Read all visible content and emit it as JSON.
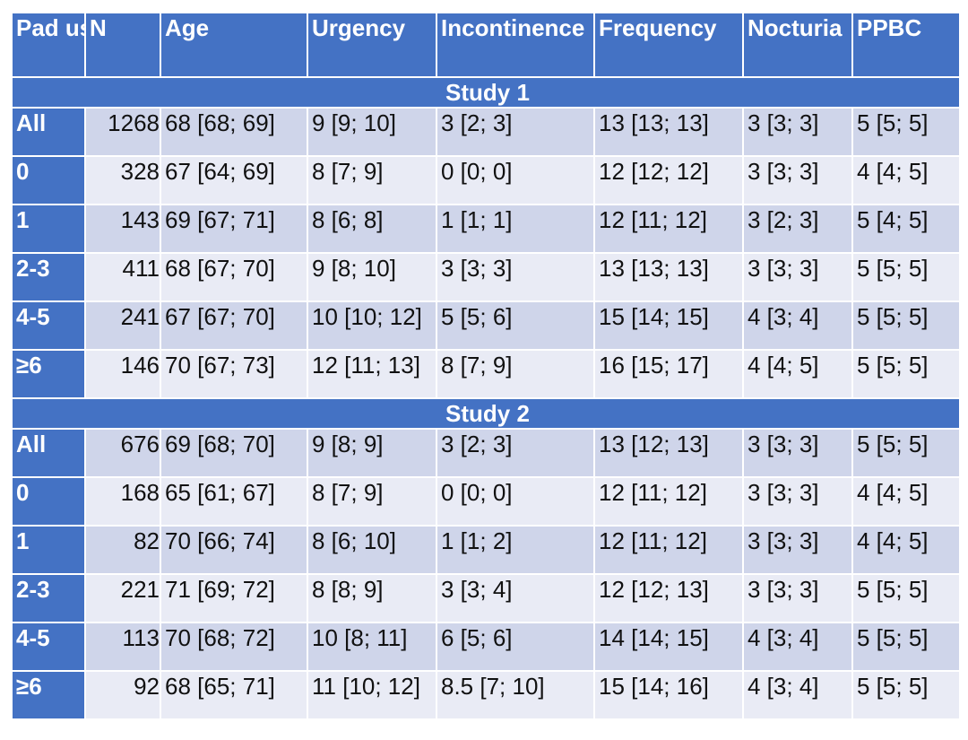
{
  "columns": [
    "Pad use",
    "N",
    "Age",
    "Urgency",
    "Incontinence",
    "Frequency",
    "Nocturia",
    "PPBC"
  ],
  "sections": [
    {
      "title": "Study 1",
      "rows": [
        [
          "All",
          "1268",
          "68 [68; 69]",
          "9 [9; 10]",
          "3 [2; 3]",
          "13 [13; 13]",
          "3 [3; 3]",
          "5 [5; 5]"
        ],
        [
          "0",
          "328",
          "67 [64; 69]",
          "8 [7; 9]",
          "0 [0; 0]",
          "12 [12; 12]",
          "3 [3; 3]",
          "4 [4; 5]"
        ],
        [
          "1",
          "143",
          "69 [67; 71]",
          "8 [6; 8]",
          "1 [1; 1]",
          "12 [11; 12]",
          "3 [2; 3]",
          "5 [4; 5]"
        ],
        [
          "2-3",
          "411",
          "68 [67; 70]",
          "9 [8; 10]",
          "3 [3; 3]",
          "13 [13; 13]",
          "3 [3; 3]",
          "5 [5; 5]"
        ],
        [
          "4-5",
          "241",
          "67 [67; 70]",
          "10 [10; 12]",
          "5 [5; 6]",
          "15 [14; 15]",
          "4 [3; 4]",
          "5 [5; 5]"
        ],
        [
          "≥6",
          "146",
          "70 [67; 73]",
          "12 [11; 13]",
          "8 [7; 9]",
          "16 [15; 17]",
          "4 [4; 5]",
          "5 [5; 5]"
        ]
      ]
    },
    {
      "title": "Study 2",
      "rows": [
        [
          "All",
          "676",
          "69 [68; 70]",
          "9 [8; 9]",
          "3 [2; 3]",
          "13 [12; 13]",
          "3 [3; 3]",
          "5 [5; 5]"
        ],
        [
          "0",
          "168",
          "65 [61; 67]",
          "8 [7; 9]",
          "0 [0; 0]",
          "12 [11; 12]",
          "3 [3; 3]",
          "4 [4; 5]"
        ],
        [
          "1",
          "82",
          "70 [66; 74]",
          "8 [6; 10]",
          "1 [1; 2]",
          "12 [11; 12]",
          "3 [3; 3]",
          "4 [4; 5]"
        ],
        [
          "2-3",
          "221",
          "71 [69; 72]",
          "8 [8; 9]",
          "3 [3; 4]",
          "12 [12; 13]",
          "3 [3; 3]",
          "5 [5; 5]"
        ],
        [
          "4-5",
          "113",
          "70 [68; 72]",
          "10 [8; 11]",
          "6 [5; 6]",
          "14 [14; 15]",
          "4 [3; 4]",
          "5 [5; 5]"
        ],
        [
          "≥6",
          "92",
          "68 [65; 71]",
          "11 [10; 12]",
          "8.5 [7; 10]",
          "15 [14; 16]",
          "4 [3; 4]",
          "5 [5; 5]"
        ]
      ]
    }
  ],
  "colors": {
    "header_blue": "#4472c4",
    "row_light": "#e9ebf5",
    "row_dark": "#cfd5ea",
    "header_text": "#ffffff"
  }
}
